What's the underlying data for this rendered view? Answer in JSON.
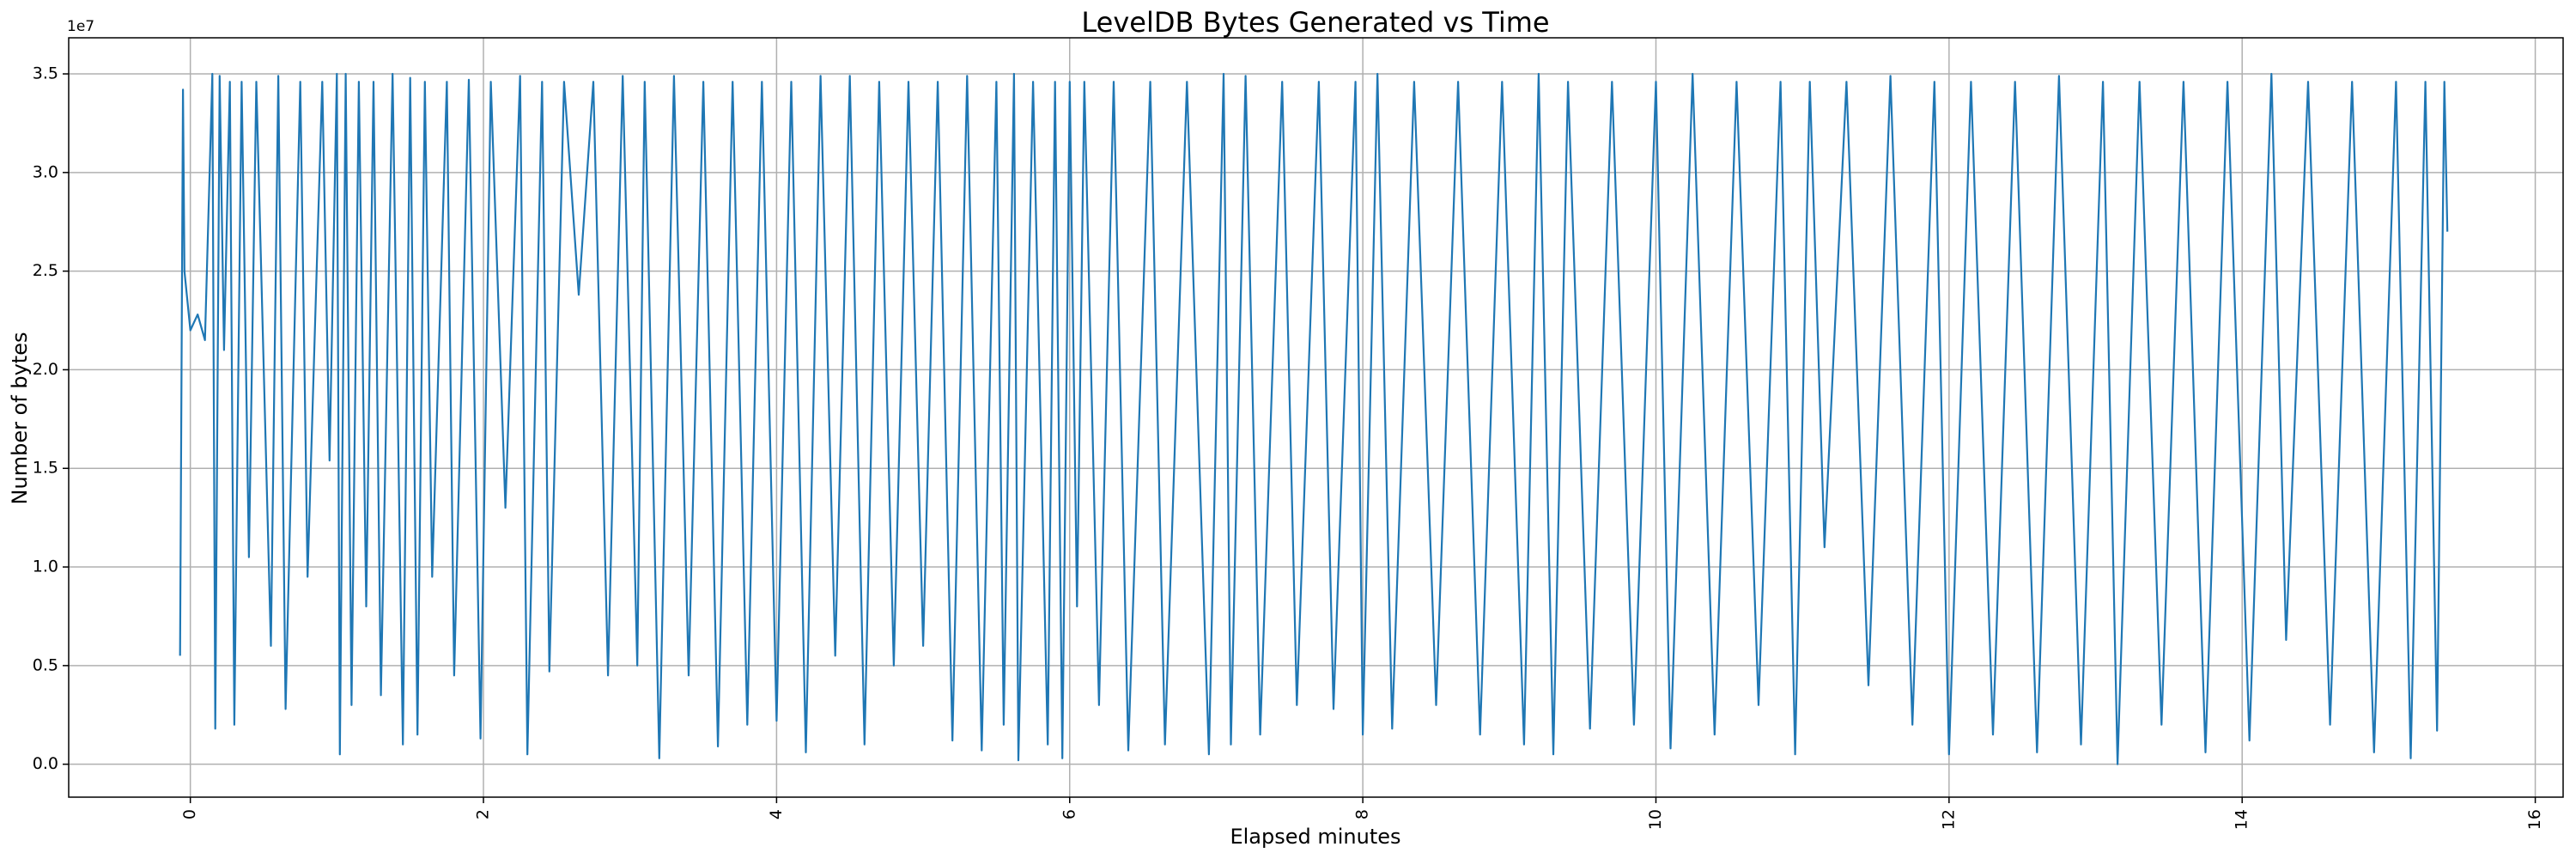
{
  "chart_data": {
    "type": "line",
    "title": "LevelDB Bytes Generated vs Time",
    "x_label": "Elapsed minutes",
    "y_label": "Number of bytes",
    "y_offset_label": "1e7",
    "grid": true,
    "xlim": [
      -0.83,
      16.19
    ],
    "ylim": [
      -1670000,
      36830000
    ],
    "xticks": [
      0,
      2,
      4,
      6,
      8,
      10,
      12,
      14,
      16
    ],
    "yticks": [
      {
        "value": 0,
        "label": "0.0"
      },
      {
        "value": 5000000,
        "label": "0.5"
      },
      {
        "value": 10000000,
        "label": "1.0"
      },
      {
        "value": 15000000,
        "label": "1.5"
      },
      {
        "value": 20000000,
        "label": "2.0"
      },
      {
        "value": 25000000,
        "label": "2.5"
      },
      {
        "value": 30000000,
        "label": "3.0"
      },
      {
        "value": 35000000,
        "label": "3.5"
      }
    ],
    "series": [
      {
        "color": "#1f77b4",
        "x": [
          -0.07,
          -0.05,
          -0.04,
          0.0,
          0.05,
          0.1,
          0.15,
          0.17,
          0.2,
          0.23,
          0.27,
          0.3,
          0.35,
          0.4,
          0.45,
          0.55,
          0.6,
          0.65,
          0.75,
          0.8,
          0.9,
          0.95,
          1.0,
          1.02,
          1.06,
          1.1,
          1.15,
          1.2,
          1.25,
          1.3,
          1.38,
          1.45,
          1.5,
          1.55,
          1.6,
          1.65,
          1.75,
          1.8,
          1.9,
          1.98,
          2.05,
          2.15,
          2.25,
          2.3,
          2.4,
          2.45,
          2.55,
          2.65,
          2.75,
          2.85,
          2.95,
          3.05,
          3.1,
          3.2,
          3.3,
          3.4,
          3.5,
          3.6,
          3.7,
          3.8,
          3.9,
          4.0,
          4.1,
          4.2,
          4.3,
          4.4,
          4.5,
          4.6,
          4.7,
          4.8,
          4.9,
          5.0,
          5.1,
          5.2,
          5.3,
          5.4,
          5.5,
          5.55,
          5.62,
          5.65,
          5.75,
          5.85,
          5.9,
          5.95,
          6.0,
          6.05,
          6.1,
          6.2,
          6.3,
          6.4,
          6.55,
          6.65,
          6.8,
          6.95,
          7.05,
          7.1,
          7.2,
          7.3,
          7.45,
          7.55,
          7.7,
          7.8,
          7.95,
          8.0,
          8.1,
          8.2,
          8.35,
          8.5,
          8.65,
          8.8,
          8.95,
          9.1,
          9.2,
          9.3,
          9.4,
          9.55,
          9.7,
          9.85,
          10.0,
          10.1,
          10.25,
          10.4,
          10.55,
          10.7,
          10.85,
          10.95,
          11.05,
          11.15,
          11.3,
          11.45,
          11.6,
          11.75,
          11.9,
          12.0,
          12.15,
          12.3,
          12.45,
          12.6,
          12.75,
          12.9,
          13.05,
          13.15,
          13.3,
          13.45,
          13.6,
          13.75,
          13.9,
          14.05,
          14.2,
          14.3,
          14.45,
          14.6,
          14.75,
          14.9,
          15.05,
          15.15,
          15.25,
          15.33,
          15.38,
          15.4
        ],
        "values": [
          5500000,
          34200000,
          25000000,
          22000000,
          22800000,
          21500000,
          35000000,
          1800000,
          34900000,
          21000000,
          34600000,
          2000000,
          34600000,
          10500000,
          34600000,
          6000000,
          34900000,
          2800000,
          34600000,
          9500000,
          34600000,
          15400000,
          35000000,
          500000,
          35000000,
          3000000,
          34600000,
          8000000,
          34600000,
          3500000,
          35000000,
          1000000,
          34800000,
          1500000,
          34600000,
          9500000,
          34600000,
          4500000,
          34700000,
          1300000,
          34600000,
          13000000,
          34900000,
          500000,
          34600000,
          4700000,
          34600000,
          23800000,
          34600000,
          4500000,
          34900000,
          5000000,
          34600000,
          300000,
          34900000,
          4500000,
          34600000,
          900000,
          34600000,
          2000000,
          34600000,
          2200000,
          34600000,
          600000,
          34900000,
          5500000,
          34900000,
          1000000,
          34600000,
          5000000,
          34600000,
          6000000,
          34600000,
          1200000,
          34900000,
          700000,
          34600000,
          2000000,
          35000000,
          200000,
          34600000,
          1000000,
          34600000,
          300000,
          34600000,
          8000000,
          34600000,
          3000000,
          34600000,
          700000,
          34600000,
          1000000,
          34600000,
          500000,
          35000000,
          1000000,
          34900000,
          1500000,
          34600000,
          3000000,
          34600000,
          2800000,
          34600000,
          1500000,
          35000000,
          1800000,
          34600000,
          3000000,
          34600000,
          1500000,
          34600000,
          1000000,
          35000000,
          500000,
          34600000,
          1800000,
          34600000,
          2000000,
          34600000,
          800000,
          35000000,
          1500000,
          34600000,
          3000000,
          34600000,
          500000,
          34600000,
          11000000,
          34600000,
          4000000,
          34900000,
          2000000,
          34600000,
          500000,
          34600000,
          1500000,
          34600000,
          600000,
          34900000,
          1000000,
          34600000,
          0,
          34600000,
          2000000,
          34600000,
          600000,
          34600000,
          1200000,
          35000000,
          6300000,
          34600000,
          2000000,
          34600000,
          600000,
          34600000,
          300000,
          34600000,
          1700000,
          34600000,
          27000000
        ]
      }
    ]
  }
}
